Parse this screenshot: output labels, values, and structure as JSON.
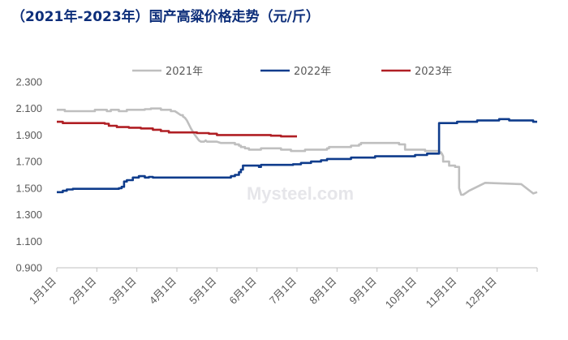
{
  "chart_data": {
    "type": "line",
    "title": "（2021年-2023年）国产高粱价格走势（元/斤）",
    "watermark": "Mysteel.com",
    "xlabel": "",
    "ylabel": "",
    "ylim": [
      0.9,
      2.3
    ],
    "yticks": [
      "0.900",
      "1.100",
      "1.300",
      "1.500",
      "1.700",
      "1.900",
      "2.100",
      "2.300"
    ],
    "ytick_values": [
      0.9,
      1.1,
      1.3,
      1.5,
      1.7,
      1.9,
      2.1,
      2.3
    ],
    "xlim": [
      1,
      13
    ],
    "xticks": [
      "1月1日",
      "2月1日",
      "3月1日",
      "4月1日",
      "5月1日",
      "6月1日",
      "7月1日",
      "8月1日",
      "9月1日",
      "10月1日",
      "11月1日",
      "12月1日"
    ],
    "xtick_values": [
      1,
      2,
      3,
      4,
      5,
      6,
      7,
      8,
      9,
      10,
      11,
      12
    ],
    "grid": false,
    "legend": "top",
    "series": [
      {
        "name": "2021年",
        "color": "#bfbfbf",
        "x": [
          1.0,
          1.2,
          1.2,
          1.95,
          1.95,
          2.25,
          2.25,
          2.35,
          2.35,
          2.55,
          2.55,
          2.75,
          2.75,
          3.2,
          3.2,
          3.35,
          3.35,
          3.6,
          3.6,
          3.85,
          3.85,
          3.95,
          4.0,
          4.05,
          4.1,
          4.15,
          4.15,
          4.2,
          4.25,
          4.3,
          4.35,
          4.45,
          4.5,
          4.55,
          4.6,
          4.65,
          4.68,
          4.72,
          4.75,
          4.8,
          5.0,
          5.1,
          5.2,
          5.35,
          5.4,
          5.45,
          5.45,
          5.55,
          5.55,
          5.6,
          5.6,
          5.7,
          5.7,
          5.8,
          5.8,
          6.1,
          6.1,
          6.6,
          6.6,
          6.85,
          6.85,
          7.2,
          7.2,
          7.75,
          7.75,
          7.8,
          7.8,
          8.35,
          8.35,
          8.55,
          8.55,
          8.6,
          8.6,
          9.55,
          9.55,
          9.7,
          9.7,
          10.2,
          10.2,
          10.55,
          10.55,
          10.6,
          10.6,
          10.62,
          10.65,
          10.65,
          10.8,
          10.8,
          10.95,
          10.95,
          11.05,
          11.05,
          11.1,
          11.15,
          11.2,
          11.2,
          11.3,
          11.3,
          11.7,
          11.7,
          12.6,
          12.6,
          12.9,
          12.9,
          13.0
        ],
        "values": [
          2.09,
          2.09,
          2.08,
          2.08,
          2.09,
          2.09,
          2.08,
          2.08,
          2.09,
          2.09,
          2.08,
          2.08,
          2.09,
          2.09,
          2.095,
          2.095,
          2.1,
          2.1,
          2.09,
          2.09,
          2.08,
          2.08,
          2.07,
          2.06,
          2.05,
          2.05,
          2.04,
          2.03,
          2.01,
          1.98,
          1.95,
          1.9,
          1.88,
          1.86,
          1.85,
          1.85,
          1.85,
          1.86,
          1.85,
          1.85,
          1.85,
          1.84,
          1.84,
          1.84,
          1.84,
          1.84,
          1.83,
          1.83,
          1.82,
          1.82,
          1.81,
          1.81,
          1.8,
          1.8,
          1.79,
          1.79,
          1.8,
          1.8,
          1.79,
          1.79,
          1.78,
          1.78,
          1.79,
          1.79,
          1.8,
          1.8,
          1.81,
          1.81,
          1.82,
          1.82,
          1.83,
          1.83,
          1.84,
          1.84,
          1.83,
          1.83,
          1.79,
          1.79,
          1.78,
          1.78,
          1.77,
          1.77,
          1.76,
          1.76,
          1.74,
          1.7,
          1.7,
          1.67,
          1.67,
          1.66,
          1.66,
          1.5,
          1.45,
          1.45,
          1.46,
          1.46,
          1.48,
          1.48,
          1.54,
          1.54,
          1.53,
          1.53,
          1.46,
          1.46,
          1.47
        ]
      },
      {
        "name": "2022年",
        "color": "#0f3c8c",
        "x": [
          1.0,
          1.15,
          1.15,
          1.25,
          1.25,
          1.4,
          1.4,
          2.55,
          2.55,
          2.62,
          2.62,
          2.68,
          2.68,
          2.75,
          2.75,
          2.9,
          2.9,
          3.05,
          3.05,
          3.2,
          3.2,
          3.3,
          3.3,
          3.4,
          3.4,
          5.35,
          5.35,
          5.45,
          5.45,
          5.55,
          5.55,
          5.6,
          5.6,
          5.65,
          5.65,
          6.05,
          6.05,
          6.1,
          6.1,
          6.9,
          6.9,
          7.1,
          7.1,
          7.35,
          7.35,
          7.6,
          7.6,
          7.75,
          7.75,
          8.35,
          8.35,
          8.95,
          8.95,
          9.95,
          9.95,
          10.25,
          10.25,
          10.55,
          10.55,
          11.0,
          11.0,
          11.5,
          11.5,
          12.05,
          12.05,
          12.3,
          12.3,
          12.9,
          12.9,
          13.0
        ],
        "values": [
          1.47,
          1.47,
          1.48,
          1.48,
          1.49,
          1.49,
          1.495,
          1.495,
          1.5,
          1.5,
          1.51,
          1.51,
          1.55,
          1.55,
          1.56,
          1.56,
          1.58,
          1.58,
          1.59,
          1.59,
          1.58,
          1.58,
          1.585,
          1.585,
          1.58,
          1.58,
          1.59,
          1.59,
          1.6,
          1.6,
          1.62,
          1.62,
          1.64,
          1.64,
          1.67,
          1.67,
          1.66,
          1.66,
          1.675,
          1.675,
          1.68,
          1.68,
          1.69,
          1.69,
          1.7,
          1.7,
          1.71,
          1.71,
          1.72,
          1.72,
          1.73,
          1.73,
          1.74,
          1.74,
          1.75,
          1.75,
          1.76,
          1.76,
          1.99,
          1.99,
          2.0,
          2.0,
          2.01,
          2.01,
          2.02,
          2.02,
          2.01,
          2.01,
          2.0,
          2.0
        ]
      },
      {
        "name": "2023年",
        "color": "#b01f24",
        "x": [
          1.0,
          1.15,
          1.15,
          2.2,
          2.2,
          2.3,
          2.3,
          2.5,
          2.5,
          2.8,
          2.8,
          3.1,
          3.1,
          3.4,
          3.4,
          3.6,
          3.6,
          3.8,
          3.8,
          4.5,
          4.5,
          4.8,
          4.8,
          5.0,
          5.0,
          6.35,
          6.35,
          6.6,
          6.6,
          7.0
        ],
        "values": [
          2.0,
          2.0,
          1.99,
          1.99,
          1.985,
          1.985,
          1.97,
          1.97,
          1.96,
          1.96,
          1.955,
          1.955,
          1.95,
          1.95,
          1.94,
          1.94,
          1.93,
          1.93,
          1.92,
          1.92,
          1.915,
          1.915,
          1.91,
          1.91,
          1.9,
          1.9,
          1.895,
          1.895,
          1.89,
          1.89
        ]
      }
    ]
  }
}
